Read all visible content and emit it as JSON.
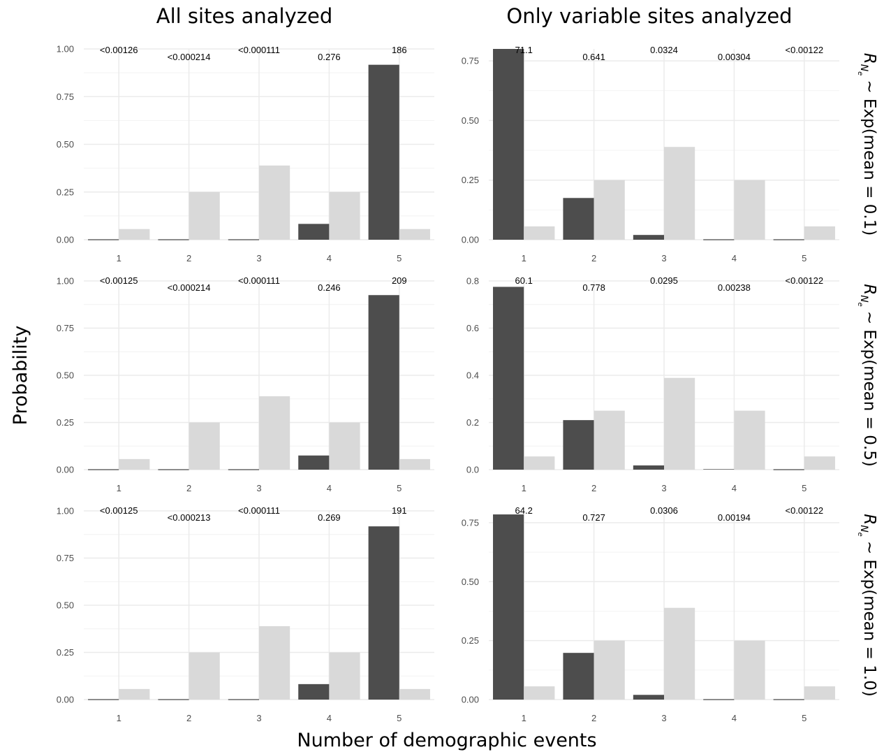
{
  "figure": {
    "column_titles": [
      "All sites analyzed",
      "Only variable sites analyzed"
    ],
    "row_strip": {
      "prefix": "R",
      "subscript": "N",
      "subsubscript": "e",
      "labels": [
        "∼ Exp(mean = 0.1)",
        "∼ Exp(mean = 0.5)",
        "∼ Exp(mean = 1.0)"
      ]
    },
    "xlabel": "Number of demographic events",
    "ylabel": "Probability"
  },
  "colors": {
    "posterior": "#4d4d4d",
    "prior": "#d9d9d9",
    "grid_major": "#ebebeb",
    "grid_minor": "#f2f2f2"
  },
  "chart_data": [
    {
      "type": "bar",
      "row": 0,
      "col": 0,
      "categories": [
        "1",
        "2",
        "3",
        "4",
        "5"
      ],
      "series": [
        {
          "values": [
            0.0,
            0.0,
            0.0,
            0.083,
            0.917
          ]
        },
        {
          "values": [
            0.056,
            0.25,
            0.389,
            0.25,
            0.056
          ]
        }
      ],
      "bar_labels": [
        "<0.00126",
        "<0.000214",
        "<0.000111",
        "0.276",
        "186"
      ],
      "ylim": [
        0,
        1.0
      ],
      "yticks": [
        "0.00",
        "0.25",
        "0.50",
        "0.75",
        "1.00"
      ]
    },
    {
      "type": "bar",
      "row": 0,
      "col": 1,
      "categories": [
        "1",
        "2",
        "3",
        "4",
        "5"
      ],
      "series": [
        {
          "values": [
            0.8,
            0.175,
            0.02,
            0.0,
            0.0
          ]
        },
        {
          "values": [
            0.056,
            0.25,
            0.389,
            0.25,
            0.056
          ]
        }
      ],
      "bar_labels": [
        "71.1",
        "0.641",
        "0.0324",
        "0.00304",
        "<0.00122"
      ],
      "ylim": [
        0,
        0.8
      ],
      "yticks": [
        "0.00",
        "0.25",
        "0.50",
        "0.75"
      ]
    },
    {
      "type": "bar",
      "row": 1,
      "col": 0,
      "categories": [
        "1",
        "2",
        "3",
        "4",
        "5"
      ],
      "series": [
        {
          "values": [
            0.0,
            0.0,
            0.0,
            0.075,
            0.925
          ]
        },
        {
          "values": [
            0.056,
            0.25,
            0.389,
            0.25,
            0.056
          ]
        }
      ],
      "bar_labels": [
        "<0.00125",
        "<0.000214",
        "<0.000111",
        "0.246",
        "209"
      ],
      "ylim": [
        0,
        1.0
      ],
      "yticks": [
        "0.00",
        "0.25",
        "0.50",
        "0.75",
        "1.00"
      ]
    },
    {
      "type": "bar",
      "row": 1,
      "col": 1,
      "categories": [
        "1",
        "2",
        "3",
        "4",
        "5"
      ],
      "series": [
        {
          "values": [
            0.775,
            0.21,
            0.018,
            0.002,
            0.0
          ]
        },
        {
          "values": [
            0.056,
            0.25,
            0.389,
            0.25,
            0.056
          ]
        }
      ],
      "bar_labels": [
        "60.1",
        "0.778",
        "0.0295",
        "0.00238",
        "<0.00122"
      ],
      "ylim": [
        0,
        0.8
      ],
      "yticks": [
        "0.0",
        "0.2",
        "0.4",
        "0.6",
        "0.8"
      ]
    },
    {
      "type": "bar",
      "row": 2,
      "col": 0,
      "categories": [
        "1",
        "2",
        "3",
        "4",
        "5"
      ],
      "series": [
        {
          "values": [
            0.0,
            0.0,
            0.0,
            0.082,
            0.918
          ]
        },
        {
          "values": [
            0.056,
            0.25,
            0.389,
            0.25,
            0.056
          ]
        }
      ],
      "bar_labels": [
        "<0.00125",
        "<0.000213",
        "<0.000111",
        "0.269",
        "191"
      ],
      "ylim": [
        0,
        1.0
      ],
      "yticks": [
        "0.00",
        "0.25",
        "0.50",
        "0.75",
        "1.00"
      ]
    },
    {
      "type": "bar",
      "row": 2,
      "col": 1,
      "categories": [
        "1",
        "2",
        "3",
        "4",
        "5"
      ],
      "series": [
        {
          "values": [
            0.785,
            0.198,
            0.02,
            0.0,
            0.0
          ]
        },
        {
          "values": [
            0.056,
            0.25,
            0.389,
            0.25,
            0.056
          ]
        }
      ],
      "bar_labels": [
        "64.2",
        "0.727",
        "0.0306",
        "0.00194",
        "<0.00122"
      ],
      "ylim": [
        0,
        0.8
      ],
      "yticks": [
        "0.00",
        "0.25",
        "0.50",
        "0.75"
      ]
    }
  ]
}
